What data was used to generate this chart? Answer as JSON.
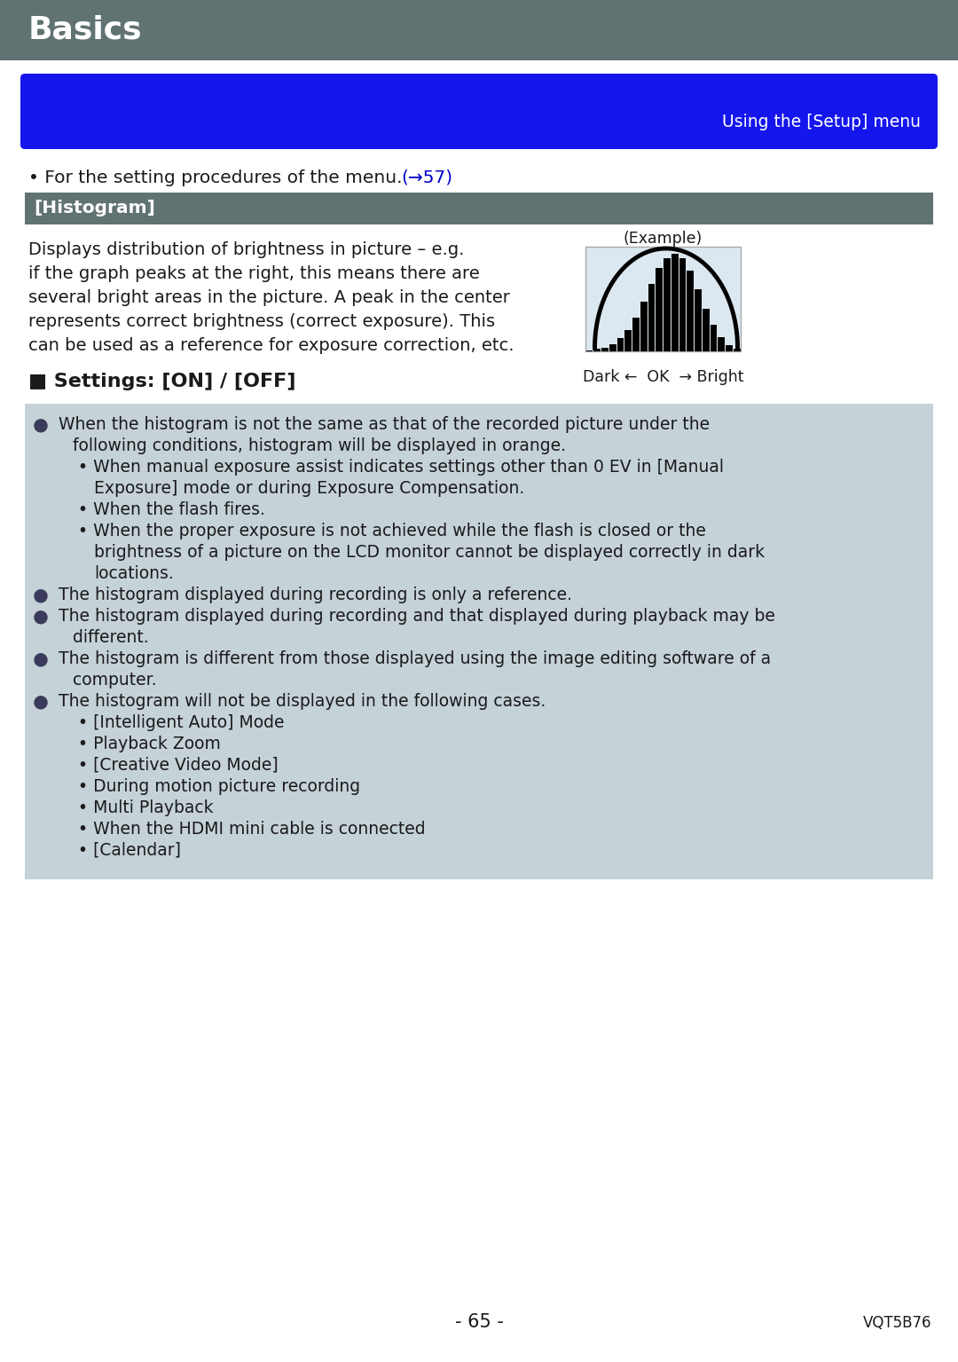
{
  "title": "Basics",
  "title_bg": "#617272",
  "title_color": "#ffffff",
  "blue_banner_color": "#1515ee",
  "blue_banner_text": "Using the [Setup] menu",
  "blue_banner_text_color": "#ffffff",
  "menu_ref_plain": "• For the setting procedures of the menu. ",
  "menu_ref_link": "(→57)",
  "menu_ref_link_color": "#0000cc",
  "histogram_bar_bg": "#617272",
  "histogram_bar_text": "[Histogram]",
  "histogram_bar_text_color": "#ffffff",
  "body_text_lines": [
    "Displays distribution of brightness in picture – e.g.",
    "if the graph peaks at the right, this means there are",
    "several bright areas in the picture. A peak in the center",
    "represents correct brightness (correct exposure). This",
    "can be used as a reference for exposure correction, etc."
  ],
  "example_label": "(Example)",
  "dark_ok_bright": "Dark ←  OK  → Bright",
  "settings_heading": "■ Settings: [ON] / [OFF]",
  "note_bg": "#c5d2d8",
  "bullet_color": "#3a3a5a",
  "note_lines": [
    {
      "type": "bullet",
      "text": "When the histogram is not the same as that of the recorded picture under the"
    },
    {
      "type": "continuation",
      "text": "following conditions, histogram will be displayed in orange."
    },
    {
      "type": "sub",
      "text": "• When manual exposure assist indicates settings other than 0 EV in [Manual"
    },
    {
      "type": "sub2",
      "text": "Exposure] mode or during Exposure Compensation."
    },
    {
      "type": "sub",
      "text": "• When the flash fires."
    },
    {
      "type": "sub",
      "text": "• When the proper exposure is not achieved while the flash is closed or the"
    },
    {
      "type": "sub2",
      "text": "brightness of a picture on the LCD monitor cannot be displayed correctly in dark"
    },
    {
      "type": "sub2",
      "text": "locations."
    },
    {
      "type": "bullet",
      "text": "The histogram displayed during recording is only a reference."
    },
    {
      "type": "bullet",
      "text": "The histogram displayed during recording and that displayed during playback may be"
    },
    {
      "type": "continuation",
      "text": "different."
    },
    {
      "type": "bullet",
      "text": "The histogram is different from those displayed using the image editing software of a"
    },
    {
      "type": "continuation",
      "text": "computer."
    },
    {
      "type": "bullet",
      "text": "The histogram will not be displayed in the following cases."
    },
    {
      "type": "sub",
      "text": "• [Intelligent Auto] Mode"
    },
    {
      "type": "sub",
      "text": "• Playback Zoom"
    },
    {
      "type": "sub",
      "text": "• [Creative Video Mode]"
    },
    {
      "type": "sub",
      "text": "• During motion picture recording"
    },
    {
      "type": "sub",
      "text": "• Multi Playback"
    },
    {
      "type": "sub",
      "text": "• When the HDMI mini cable is connected"
    },
    {
      "type": "sub",
      "text": "• [Calendar]"
    }
  ],
  "page_number": "- 65 -",
  "version_code": "VQT5B76",
  "page_bg": "#ffffff",
  "body_text_color": "#1a1a1a"
}
